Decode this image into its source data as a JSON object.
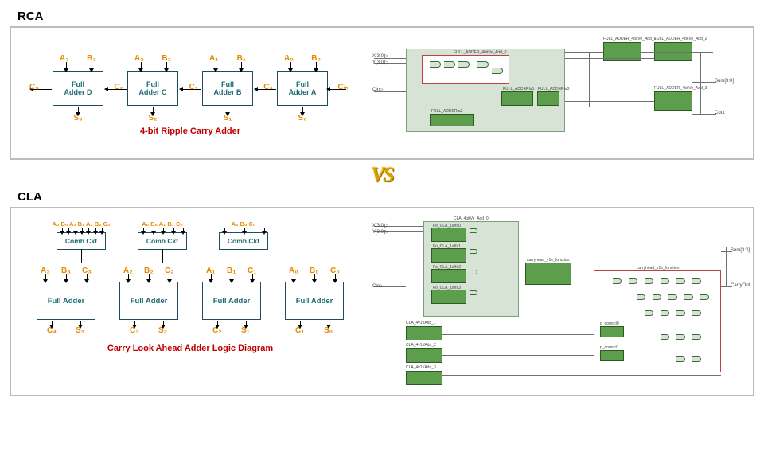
{
  "labels": {
    "rca_title": "RCA",
    "cla_title": "CLA",
    "vs": "VS",
    "rca_caption": "4-bit Ripple Carry Adder",
    "cla_caption": "Carry Look Ahead Adder Logic Diagram",
    "full_adder": "Full Adder",
    "comb_ckt": "Comb Ckt"
  },
  "rca": {
    "blocks": [
      {
        "name": "Full Adder D",
        "a": "A₃",
        "b": "B₃",
        "s": "S₃",
        "cout": "C₃",
        "cin": "C₂"
      },
      {
        "name": "Full Adder C",
        "a": "A₂",
        "b": "B₂",
        "s": "S₂",
        "cout": "C₂",
        "cin": "C₁"
      },
      {
        "name": "Full Adder B",
        "a": "A₁",
        "b": "B₁",
        "s": "S₁",
        "cout": "C₁",
        "cin": "C₀"
      },
      {
        "name": "Full Adder A",
        "a": "A₀",
        "b": "B₀",
        "s": "S₀",
        "cout": "C₀",
        "cin": "Cᵢₙ"
      }
    ],
    "schematic_labels": [
      "FULL_ADDER_4bitVe_Add_1",
      "FULL_ADDER_4bitVe_Add_2",
      "FULL_ADDER_4bitVe_Add_0",
      "FULL_ADDER_4bitVe_Add_3",
      "FULL_ADDERfa1",
      "FULL_ADDERfa2",
      "FULL_ADDERfa3"
    ]
  },
  "cla": {
    "comb": [
      {
        "inputs": "A₀ B₀ A₁ B₁ A₂ B₂ C₀"
      },
      {
        "inputs": "A₀ B₀ A₁ B₁ C₀"
      },
      {
        "inputs": "A₀ B₀ C₀"
      }
    ],
    "fa": [
      {
        "in": "A₃ B₃ C₃",
        "out": "C₄ S₃"
      },
      {
        "in": "A₂ B₂ C₂",
        "out": "C₃ S₂"
      },
      {
        "in": "A₁ B₁ C₁",
        "out": "C₂ S₁"
      },
      {
        "in": "A₀ B₀ C₀",
        "out": "C₁ S₀"
      }
    ],
    "schematic_labels": [
      "CLA_4bitVe_Add_0",
      "Fo_CLA_1a/fa0",
      "Fo_CLA_1a/fa1",
      "Fo_CLA_1a/fa2",
      "Fo_CLA_1a/fa3",
      "carryhead_v1e_function",
      "CLA_4v1f/Add_1",
      "CLA_4v1f/Add_2",
      "CLA_4v1f/Add_3",
      "p_correct0",
      "p_correct1"
    ]
  },
  "colors": {
    "border": "#bcbcbc",
    "block_border": "#1b4d5a",
    "block_text": "#1b6b73",
    "io_text": "#e58a00",
    "caption": "#c00000",
    "vs": "#d9a000",
    "sch_green_bg": "#d7e3d4",
    "sch_green_node": "#5d9e4c",
    "sch_red": "#c04040"
  }
}
